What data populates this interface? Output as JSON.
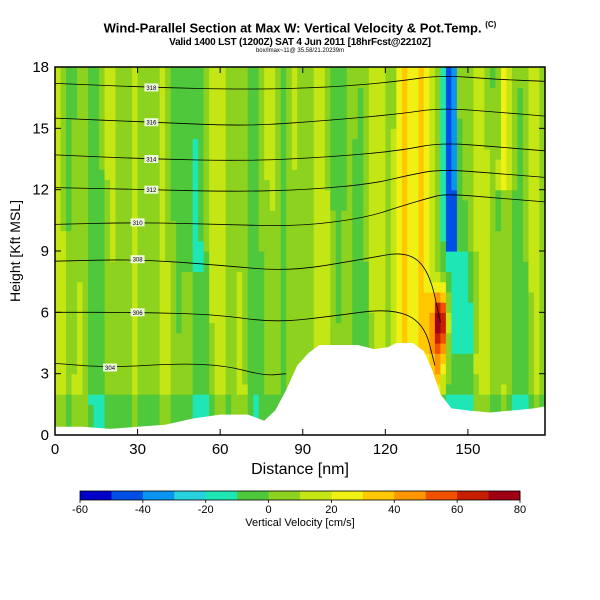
{
  "header": {
    "title": "Wind-Parallel Section at Max W: Vertical Velocity & Pot.Temp.",
    "title_mark": "(C)",
    "valid_line": "Valid 1400 LST (1200Z) SAT 4 Jun 2011 [18hrFcst@2210Z]",
    "id_line": "box/lmax~11@ 35.58/21.20239m"
  },
  "chart_data": {
    "type": "heatmap",
    "title": "Wind-Parallel Section at Max W: Vertical Velocity & Pot.Temp.",
    "xlabel": "Distance [nm]",
    "ylabel": "Height [Kft MSL]",
    "xlim": [
      0,
      178
    ],
    "ylim": [
      0,
      18
    ],
    "xticks": [
      0,
      30,
      60,
      90,
      120,
      150
    ],
    "yticks": [
      0,
      3,
      6,
      9,
      12,
      15,
      18
    ],
    "colorbar": {
      "label": "Vertical Velocity [cm/s]",
      "ticks": [
        -60,
        -40,
        -20,
        0,
        20,
        40,
        60,
        80
      ],
      "min": -60,
      "max": 80,
      "step": 10,
      "colors": [
        "#0000c8",
        "#0050e6",
        "#0a96f0",
        "#28d2dc",
        "#1ee6b4",
        "#50c83c",
        "#8cd21e",
        "#c3e614",
        "#f0f014",
        "#ffc800",
        "#ff9600",
        "#f05000",
        "#c81e00",
        "#a00014"
      ]
    },
    "terrain": [
      [
        0,
        0.4
      ],
      [
        10,
        0.4
      ],
      [
        20,
        0.3
      ],
      [
        30,
        0.4
      ],
      [
        40,
        0.5
      ],
      [
        50,
        0.8
      ],
      [
        60,
        1.0
      ],
      [
        70,
        1.0
      ],
      [
        76,
        0.7
      ],
      [
        80,
        1.2
      ],
      [
        84,
        2.2
      ],
      [
        88,
        3.4
      ],
      [
        92,
        4.0
      ],
      [
        96,
        4.4
      ],
      [
        110,
        4.4
      ],
      [
        116,
        4.2
      ],
      [
        121,
        4.3
      ],
      [
        124,
        4.5
      ],
      [
        130,
        4.5
      ],
      [
        134,
        4.1
      ],
      [
        137,
        3.2
      ],
      [
        140,
        2.0
      ],
      [
        144,
        1.3
      ],
      [
        150,
        1.2
      ],
      [
        158,
        1.1
      ],
      [
        166,
        1.2
      ],
      [
        174,
        1.3
      ],
      [
        178,
        1.4
      ]
    ],
    "theta_isentropes": [
      {
        "label": "304",
        "points": [
          [
            0,
            3.5
          ],
          [
            20,
            3.3
          ],
          [
            45,
            3.5
          ],
          [
            62,
            3.4
          ],
          [
            76,
            2.9
          ],
          [
            84,
            3.0
          ]
        ]
      },
      {
        "label": "306",
        "points": [
          [
            0,
            6.0
          ],
          [
            30,
            6.0
          ],
          [
            58,
            5.9
          ],
          [
            80,
            5.5
          ],
          [
            100,
            5.8
          ],
          [
            122,
            6.2
          ],
          [
            134,
            5.5
          ],
          [
            138,
            3.4
          ]
        ]
      },
      {
        "label": "308",
        "points": [
          [
            0,
            8.5
          ],
          [
            30,
            8.6
          ],
          [
            60,
            8.3
          ],
          [
            85,
            8.0
          ],
          [
            112,
            8.6
          ],
          [
            128,
            9.0
          ],
          [
            136,
            8.0
          ],
          [
            140,
            5.5
          ]
        ]
      },
      {
        "label": "310",
        "points": [
          [
            0,
            10.3
          ],
          [
            30,
            10.4
          ],
          [
            60,
            10.3
          ],
          [
            88,
            10.2
          ],
          [
            112,
            10.6
          ],
          [
            126,
            11.2
          ],
          [
            136,
            11.6
          ],
          [
            142,
            11.8
          ],
          [
            160,
            11.6
          ],
          [
            178,
            11.4
          ]
        ]
      },
      {
        "label": "312",
        "points": [
          [
            0,
            12.1
          ],
          [
            35,
            12.0
          ],
          [
            65,
            11.9
          ],
          [
            92,
            12.0
          ],
          [
            116,
            12.3
          ],
          [
            128,
            12.7
          ],
          [
            140,
            13.0
          ],
          [
            160,
            12.8
          ],
          [
            178,
            12.6
          ]
        ]
      },
      {
        "label": "314",
        "points": [
          [
            0,
            13.7
          ],
          [
            35,
            13.5
          ],
          [
            70,
            13.4
          ],
          [
            100,
            13.6
          ],
          [
            125,
            13.9
          ],
          [
            140,
            14.3
          ],
          [
            160,
            14.1
          ],
          [
            178,
            13.9
          ]
        ]
      },
      {
        "label": "316",
        "points": [
          [
            0,
            15.5
          ],
          [
            35,
            15.3
          ],
          [
            70,
            15.1
          ],
          [
            100,
            15.4
          ],
          [
            125,
            15.7
          ],
          [
            140,
            16.0
          ],
          [
            160,
            15.8
          ],
          [
            178,
            15.6
          ]
        ]
      },
      {
        "label": "318",
        "points": [
          [
            0,
            17.2
          ],
          [
            35,
            17.0
          ],
          [
            70,
            16.9
          ],
          [
            100,
            17.0
          ],
          [
            125,
            17.3
          ],
          [
            140,
            17.6
          ],
          [
            160,
            17.4
          ],
          [
            178,
            17.3
          ]
        ]
      }
    ]
  }
}
